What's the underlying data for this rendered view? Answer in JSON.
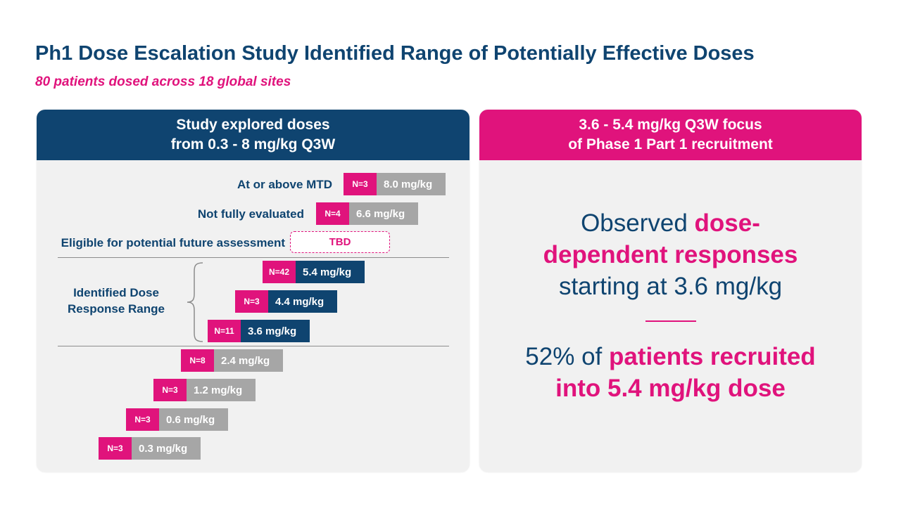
{
  "title": "Ph1 Dose Escalation Study Identified Range of Potentially Effective Doses",
  "subtitle": "80 patients dosed across 18 global sites",
  "left_panel": {
    "header_line1": "Study explored doses",
    "header_line2": "from 0.3 - 8 mg/kg Q3W",
    "labels": {
      "mtd": "At or above MTD",
      "not_evaluated": "Not fully evaluated",
      "eligible": "Eligible for potential future assessment",
      "range_line1": "Identified Dose",
      "range_line2": "Response Range"
    },
    "tbd": "TBD",
    "doses": [
      {
        "n": "N=3",
        "dose": "8.0 mg/kg"
      },
      {
        "n": "N=4",
        "dose": "6.6 mg/kg"
      },
      {
        "n": "N=42",
        "dose": "5.4 mg/kg"
      },
      {
        "n": "N=3",
        "dose": "4.4 mg/kg"
      },
      {
        "n": "N=11",
        "dose": "3.6 mg/kg"
      },
      {
        "n": "N=8",
        "dose": "2.4 mg/kg"
      },
      {
        "n": "N=3",
        "dose": "1.2 mg/kg"
      },
      {
        "n": "N=3",
        "dose": "0.6 mg/kg"
      },
      {
        "n": "N=3",
        "dose": "0.3 mg/kg"
      }
    ]
  },
  "right_panel": {
    "header_line1": "3.6 - 5.4 mg/kg Q3W focus",
    "header_line2": "of Phase 1 Part 1 recruitment",
    "block1": {
      "a": "Observed ",
      "b": "dose-",
      "c": "dependent responses",
      "d": "starting at 3.6 mg/kg"
    },
    "block2": {
      "a": "52% of ",
      "b": "patients recruited",
      "c": "into 5.4 mg/kg dose"
    }
  },
  "colors": {
    "navy": "#0f4470",
    "magenta": "#e0137c",
    "gray": "#a6a6a6"
  }
}
